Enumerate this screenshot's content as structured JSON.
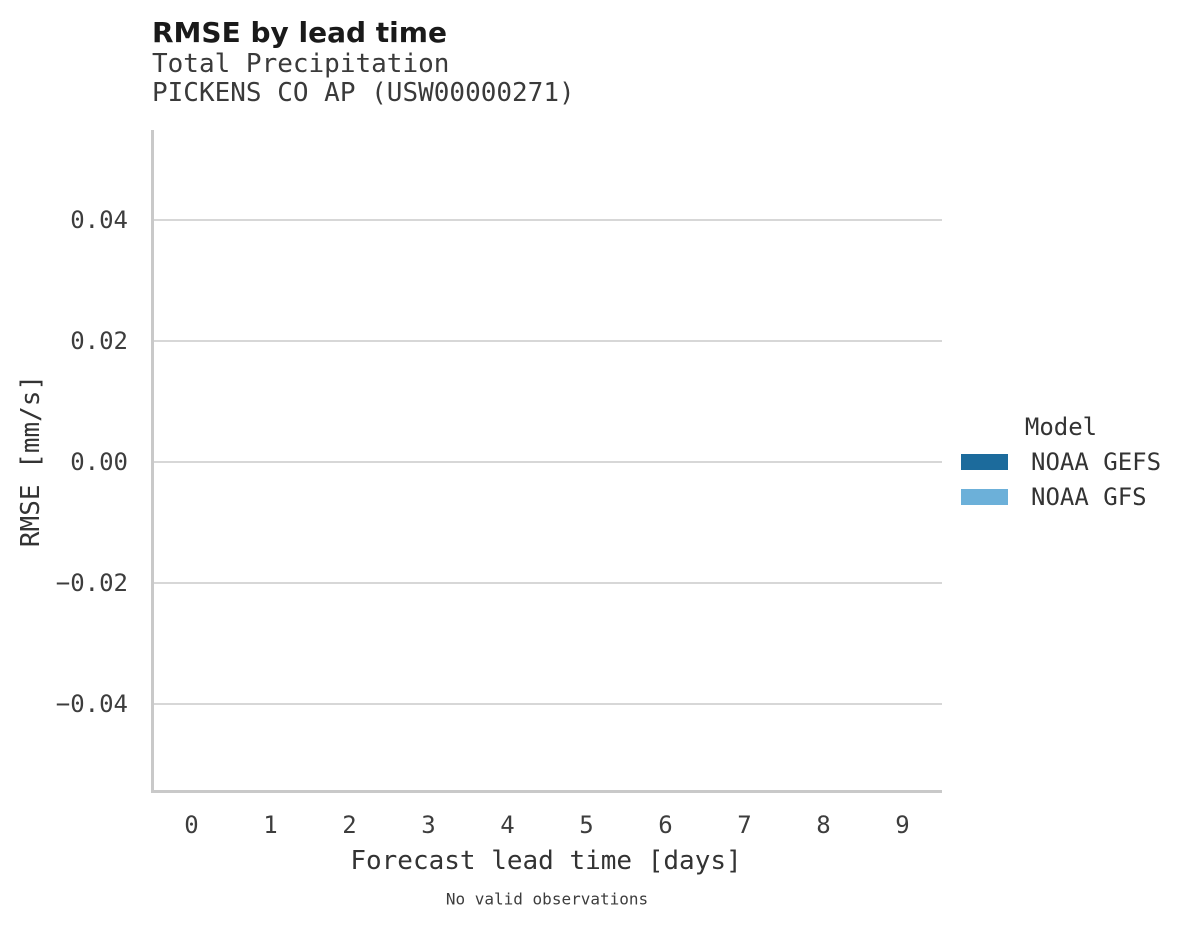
{
  "chart": {
    "title": "RMSE by lead time",
    "subtitle_lines": [
      "Total Precipitation",
      "PICKENS CO AP (USW00000271)"
    ]
  },
  "chart_data": {
    "type": "line",
    "title": "RMSE by lead time",
    "subtitle": [
      "Total Precipitation",
      "PICKENS CO AP (USW00000271)"
    ],
    "xlabel": "Forecast lead time [days]",
    "ylabel": "RMSE [mm/s]",
    "x_ticks": [
      0,
      1,
      2,
      3,
      4,
      5,
      6,
      7,
      8,
      9
    ],
    "x_tick_labels": [
      "0",
      "1",
      "2",
      "3",
      "4",
      "5",
      "6",
      "7",
      "8",
      "9"
    ],
    "y_ticks": [
      0.04,
      0.02,
      0.0,
      -0.02,
      -0.04
    ],
    "y_tick_labels": [
      "0.04",
      "0.02",
      "0.00",
      "−0.02",
      "−0.04"
    ],
    "xlim": [
      0,
      9
    ],
    "ylim": [
      -0.055,
      0.055
    ],
    "grid": "horizontal-only",
    "series": [
      {
        "name": "NOAA GEFS",
        "color": "#1c6b9c",
        "values": []
      },
      {
        "name": "NOAA GFS",
        "color": "#6cb0d9",
        "values": []
      }
    ],
    "legend": {
      "title": "Model",
      "position": "right",
      "entries": [
        {
          "label": "NOAA GEFS",
          "color": "#1c6b9c"
        },
        {
          "label": "NOAA GFS",
          "color": "#6cb0d9"
        }
      ]
    },
    "note": "No valid observations"
  },
  "colors": {
    "background": "#ffffff",
    "spine": "#c9c9c9",
    "gridline": "#d7d7d7",
    "title_text": "#1a1a1a",
    "label_text": "#3d3d3d"
  }
}
